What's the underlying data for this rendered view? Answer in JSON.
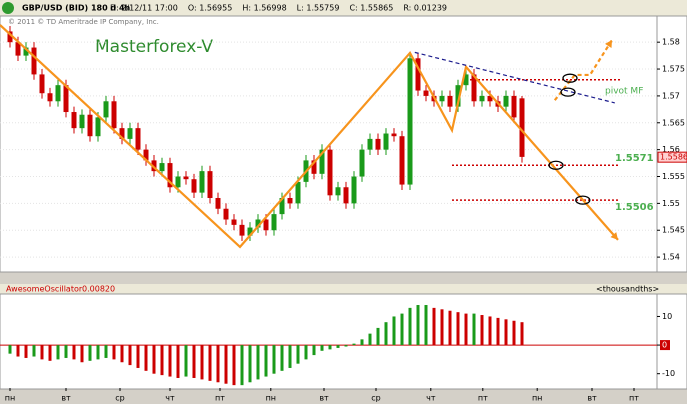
{
  "chart_data": [
    {
      "type": "candlestick",
      "title": "GBP/USD (BID) 180 d 4h",
      "info": [
        "D: 2/12/11 17:00",
        "O: 1.56955",
        "H: 1.56998",
        "L: 1.55759",
        "C: 1.55865",
        "R: 0.01239"
      ],
      "subtitle": "© 2011 © TD Ameritrade IP Company, Inc.",
      "annotations": [
        "Masterforex-V",
        "pivot MF"
      ],
      "up_color": "#1a9a1a",
      "down_color": "#cc0000",
      "xlim": [
        -1.25,
        80.875
      ],
      "ylim": [
        1.5376,
        1.5845
      ],
      "yticks": [
        1.58,
        1.575,
        1.57,
        1.565,
        1.56,
        1.555,
        1.55,
        1.545,
        1.54
      ],
      "grid": true,
      "last_price": 1.5586,
      "open": [
        1.582,
        1.58,
        1.5775,
        1.579,
        1.574,
        1.5705,
        1.569,
        1.572,
        1.567,
        1.564,
        1.5665,
        1.5625,
        1.566,
        1.569,
        1.564,
        1.562,
        1.564,
        1.56,
        1.558,
        1.556,
        1.5575,
        1.553,
        1.555,
        1.5545,
        1.552,
        1.556,
        1.551,
        1.549,
        1.547,
        1.546,
        1.544,
        1.5455,
        1.547,
        1.545,
        1.548,
        1.551,
        1.55,
        1.554,
        1.558,
        1.5555,
        1.56,
        1.5515,
        1.553,
        1.55,
        1.555,
        1.56,
        1.562,
        1.56,
        1.563,
        1.5625,
        1.5535,
        1.577,
        1.571,
        1.57,
        1.569,
        1.57,
        1.568,
        1.572,
        1.574,
        1.569,
        1.57,
        1.569,
        1.568,
        1.57,
        1.56955
      ],
      "high": [
        1.583,
        1.581,
        1.58,
        1.58,
        1.575,
        1.5715,
        1.573,
        1.573,
        1.568,
        1.5675,
        1.5675,
        1.567,
        1.57,
        1.57,
        1.565,
        1.565,
        1.565,
        1.561,
        1.559,
        1.5585,
        1.5585,
        1.556,
        1.556,
        1.5555,
        1.557,
        1.557,
        1.552,
        1.55,
        1.548,
        1.547,
        1.5465,
        1.548,
        1.548,
        1.549,
        1.552,
        1.552,
        1.555,
        1.559,
        1.559,
        1.561,
        1.561,
        1.554,
        1.554,
        1.556,
        1.561,
        1.563,
        1.563,
        1.564,
        1.564,
        1.5635,
        1.578,
        1.578,
        1.572,
        1.571,
        1.571,
        1.571,
        1.573,
        1.575,
        1.575,
        1.571,
        1.571,
        1.57,
        1.571,
        1.571,
        1.56998
      ],
      "low": [
        1.579,
        1.5765,
        1.5765,
        1.573,
        1.5695,
        1.568,
        1.568,
        1.566,
        1.563,
        1.563,
        1.5615,
        1.5615,
        1.565,
        1.563,
        1.561,
        1.561,
        1.559,
        1.557,
        1.555,
        1.555,
        1.552,
        1.552,
        1.5535,
        1.551,
        1.551,
        1.55,
        1.548,
        1.546,
        1.545,
        1.543,
        1.543,
        1.5445,
        1.544,
        1.544,
        1.547,
        1.549,
        1.549,
        1.553,
        1.5545,
        1.5545,
        1.5505,
        1.5505,
        1.549,
        1.549,
        1.554,
        1.559,
        1.559,
        1.559,
        1.5615,
        1.5525,
        1.5525,
        1.57,
        1.569,
        1.568,
        1.568,
        1.567,
        1.567,
        1.571,
        1.568,
        1.568,
        1.568,
        1.567,
        1.567,
        1.565,
        1.55759
      ],
      "close": [
        1.58,
        1.5775,
        1.579,
        1.574,
        1.5705,
        1.569,
        1.572,
        1.567,
        1.564,
        1.5665,
        1.5625,
        1.566,
        1.569,
        1.564,
        1.562,
        1.564,
        1.56,
        1.558,
        1.556,
        1.5575,
        1.553,
        1.555,
        1.5545,
        1.552,
        1.556,
        1.551,
        1.549,
        1.547,
        1.546,
        1.544,
        1.5455,
        1.547,
        1.545,
        1.548,
        1.551,
        1.55,
        1.554,
        1.558,
        1.5555,
        1.56,
        1.5515,
        1.553,
        1.55,
        1.555,
        1.56,
        1.562,
        1.56,
        1.563,
        1.5625,
        1.5535,
        1.577,
        1.571,
        1.57,
        1.569,
        1.57,
        1.568,
        1.572,
        1.574,
        1.569,
        1.57,
        1.569,
        1.568,
        1.57,
        1.566,
        1.55865
      ],
      "lines": [
        {
          "color": "#f7941d",
          "dashed": false,
          "x": [
            -1.25,
            28.75,
            50,
            55.25,
            57,
            76
          ],
          "y": [
            1.5832,
            1.5419,
            1.578,
            1.5636,
            1.5754,
            1.5432
          ]
        },
        {
          "color": "#f7941d",
          "dashed": true,
          "x": [
            68.1,
            70.6,
            72.5,
            75.25
          ],
          "y": [
            1.5692,
            1.5739,
            1.5739,
            1.5804
          ]
        },
        {
          "color": "#1a1a8c",
          "dashed": true,
          "x": [
            50.6,
            75.6
          ],
          "y": [
            1.5781,
            1.5687
          ]
        }
      ],
      "levels": [
        {
          "value": 1.573,
          "x": [
            57.5,
            76.25
          ],
          "color": "#cc0000"
        },
        {
          "value": 1.5571,
          "x": [
            55.25,
            76.25
          ],
          "color": "#cc0000"
        },
        {
          "value": 1.5506,
          "x": [
            55.25,
            76.25
          ],
          "color": "#cc0000"
        }
      ],
      "markers": [
        {
          "x": 70,
          "y": 1.5733
        },
        {
          "x": 69.75,
          "y": 1.5707
        },
        {
          "x": 68.25,
          "y": 1.5571
        },
        {
          "x": 71.6,
          "y": 1.5506
        }
      ]
    },
    {
      "type": "bar",
      "title": "AwesomeOscillator",
      "info": [
        "0.0082",
        "0"
      ],
      "unit_label": "<thousandths>",
      "up_color": "#1a9a1a",
      "down_color": "#cc0000",
      "xlim": [
        -1.25,
        80.875
      ],
      "ylim": [
        -15,
        17.5
      ],
      "yticks": [
        10,
        0,
        -10
      ],
      "xticks": [
        {
          "value": 0,
          "label": "пн"
        },
        {
          "value": 7,
          "label": "вт"
        },
        {
          "value": 13.75,
          "label": "ср"
        },
        {
          "value": 20,
          "label": "чт"
        },
        {
          "value": 26.25,
          "label": "пт"
        },
        {
          "value": 32.6,
          "label": "пн"
        },
        {
          "value": 39.25,
          "label": "вт"
        },
        {
          "value": 45.75,
          "label": "ср"
        },
        {
          "value": 52.6,
          "label": "чт"
        },
        {
          "value": 59.1,
          "label": "пт"
        },
        {
          "value": 65.9,
          "label": "пн"
        },
        {
          "value": 72.75,
          "label": "вт"
        },
        {
          "value": 78,
          "label": "пт"
        }
      ],
      "values": [
        -3,
        -4,
        -4.5,
        -4,
        -5,
        -5.5,
        -5,
        -4.5,
        -5,
        -6,
        -5.5,
        -5,
        -4.5,
        -5,
        -6,
        -7,
        -8,
        -9,
        -10,
        -10.5,
        -11,
        -11.5,
        -11,
        -11.5,
        -12,
        -12.5,
        -13,
        -13.5,
        -14,
        -14,
        -13,
        -12,
        -11,
        -10,
        -9,
        -8,
        -6.5,
        -5,
        -3.5,
        -2,
        -1.5,
        -1,
        -0.5,
        0.5,
        2,
        4,
        6,
        8,
        10,
        11,
        13,
        14,
        14,
        13,
        12.5,
        12,
        11.5,
        11,
        11,
        10.5,
        10,
        9.5,
        9,
        8.5,
        8
      ]
    }
  ]
}
